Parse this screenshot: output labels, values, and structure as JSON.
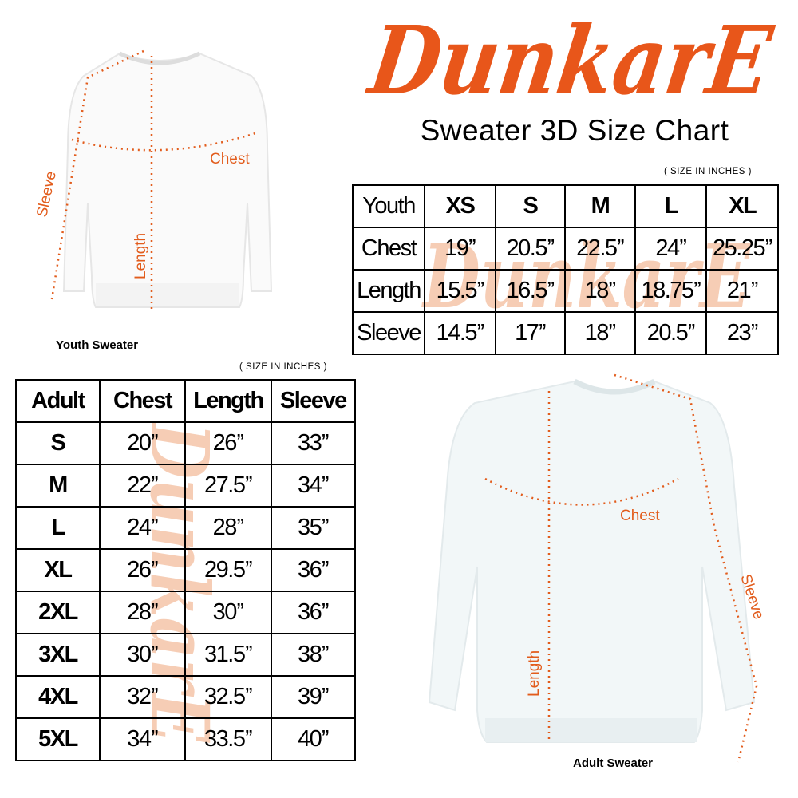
{
  "brand": {
    "logo_text": "DunkarE",
    "color": "#e8561a",
    "watermark_color": "#f6cdb5"
  },
  "title": "Sweater 3D Size Chart",
  "youth": {
    "unit_note": "( SIZE IN INCHES )",
    "caption": "Youth Sweater",
    "measure_labels": {
      "chest": "Chest",
      "length": "Length",
      "sleeve": "Sleeve"
    },
    "headers": [
      "Youth",
      "XS",
      "S",
      "M",
      "L",
      "XL"
    ],
    "rows": [
      [
        "Chest",
        "19’’",
        "20.5’’",
        "22.5’’",
        "24’’",
        "25.25’’"
      ],
      [
        "Length",
        "15.5’’",
        "16.5’’",
        "18’’",
        "18.75’’",
        "21’’"
      ],
      [
        "Sleeve",
        "14.5’’",
        "17’’",
        "18’’",
        "20.5’’",
        "23’’"
      ]
    ]
  },
  "adult": {
    "unit_note": "( SIZE IN INCHES )",
    "caption": "Adult Sweater",
    "measure_labels": {
      "chest": "Chest",
      "length": "Length",
      "sleeve": "Sleeve"
    },
    "headers": [
      "Adult",
      "Chest",
      "Length",
      "Sleeve"
    ],
    "rows": [
      [
        "S",
        "20’’",
        "26’’",
        "33’’"
      ],
      [
        "M",
        "22’’",
        "27.5’’",
        "34’’"
      ],
      [
        "L",
        "24’’",
        "28’’",
        "35’’"
      ],
      [
        "XL",
        "26’’",
        "29.5’’",
        "36’’"
      ],
      [
        "2XL",
        "28’’",
        "30’’",
        "36’’"
      ],
      [
        "3XL",
        "30’’",
        "31.5’’",
        "38’’"
      ],
      [
        "4XL",
        "32’’",
        "32.5’’",
        "39’’"
      ],
      [
        "5XL",
        "34’’",
        "33.5’’",
        "40’’"
      ]
    ]
  }
}
